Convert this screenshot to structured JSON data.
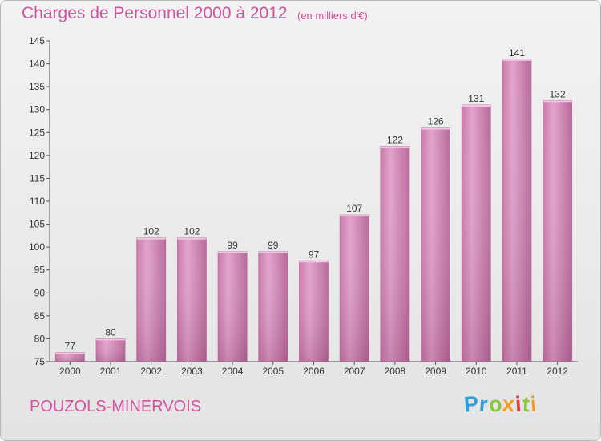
{
  "chart_data": {
    "type": "bar",
    "title": "Charges de Personnel 2000 à 2012",
    "subtitle": "(en milliers d'€)",
    "categories": [
      "2000",
      "2001",
      "2002",
      "2003",
      "2004",
      "2005",
      "2006",
      "2007",
      "2008",
      "2009",
      "2010",
      "2011",
      "2012"
    ],
    "values": [
      77,
      80,
      102,
      102,
      99,
      99,
      97,
      107,
      122,
      126,
      131,
      141,
      132
    ],
    "ylim": [
      75,
      145
    ],
    "yticks": [
      75,
      80,
      85,
      90,
      95,
      100,
      105,
      110,
      115,
      120,
      125,
      130,
      135,
      140,
      145
    ],
    "grid": false,
    "bar_color": "#d98fbe"
  },
  "footer": {
    "commune": "POUZOLS-MINERVOIS",
    "logo_letters": [
      {
        "ch": "P",
        "color": "#2e9fd6"
      },
      {
        "ch": "r",
        "color": "#2e9fd6"
      },
      {
        "ch": "o",
        "color": "#8cc63e"
      },
      {
        "ch": "x",
        "color": "#f29a1f"
      },
      {
        "ch": "i",
        "color": "#e63c3c"
      },
      {
        "ch": "t",
        "color": "#8cc63e"
      },
      {
        "ch": "i",
        "color": "#f29a1f"
      }
    ]
  }
}
